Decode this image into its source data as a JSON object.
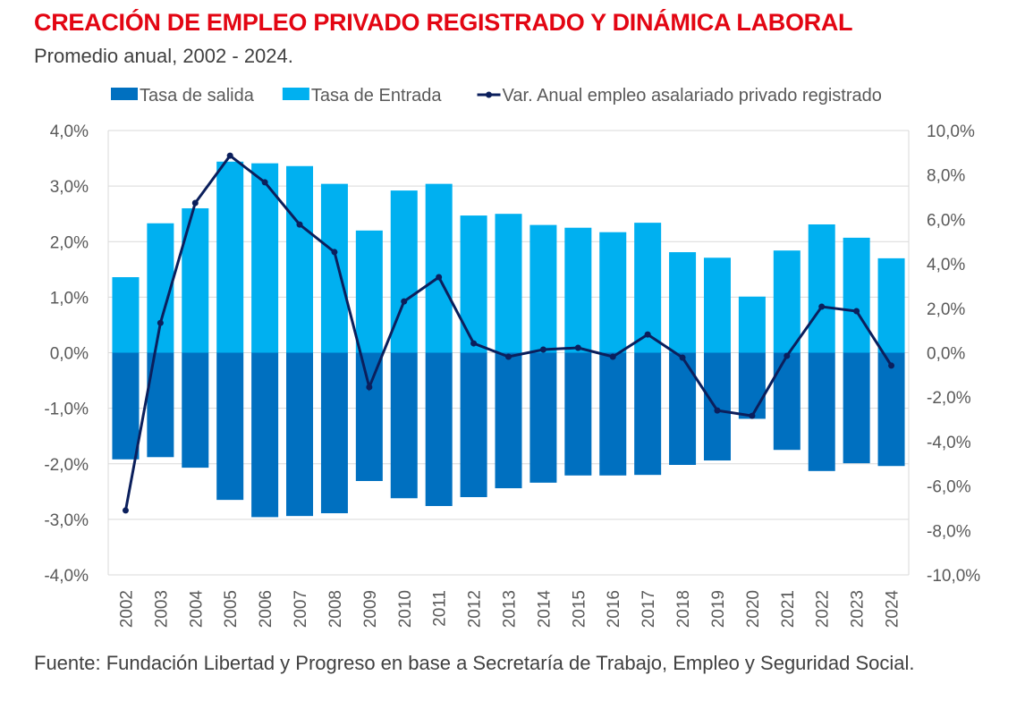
{
  "header": {
    "title": "CREACIÓN DE EMPLEO PRIVADO REGISTRADO Y DINÁMICA LABORAL",
    "subtitle": "Promedio anual, 2002 - 2024."
  },
  "footer": {
    "source": "Fuente: Fundación Libertad y Progreso en base a Secretaría de Trabajo, Empleo y Seguridad Social."
  },
  "chart_data": {
    "type": "bar",
    "categories": [
      "2002",
      "2003",
      "2004",
      "2005",
      "2006",
      "2007",
      "2008",
      "2009",
      "2010",
      "2011",
      "2012",
      "2013",
      "2014",
      "2015",
      "2016",
      "2017",
      "2018",
      "2019",
      "2020",
      "2021",
      "2022",
      "2023",
      "2024"
    ],
    "series": [
      {
        "name": "Tasa de salida",
        "type": "bar",
        "axis": "left",
        "color": "#0070c0",
        "values": [
          -1.92,
          -1.88,
          -2.07,
          -2.65,
          -2.96,
          -2.94,
          -2.89,
          -2.31,
          -2.62,
          -2.76,
          -2.6,
          -2.44,
          -2.34,
          -2.21,
          -2.21,
          -2.2,
          -2.02,
          -1.94,
          -1.19,
          -1.75,
          -2.13,
          -1.99,
          -2.04
        ]
      },
      {
        "name": "Tasa de Entrada",
        "type": "bar",
        "axis": "left",
        "color": "#00b0f0",
        "values": [
          1.36,
          2.33,
          2.6,
          3.44,
          3.41,
          3.36,
          3.04,
          2.2,
          2.92,
          3.04,
          2.47,
          2.5,
          2.3,
          2.25,
          2.17,
          2.34,
          1.81,
          1.71,
          1.01,
          1.84,
          2.31,
          2.07,
          1.7
        ]
      },
      {
        "name": "Var. Anual empleo asalariado privado registrado",
        "type": "line",
        "axis": "right",
        "color": "#0b1f5c",
        "values": [
          -7.1,
          1.34,
          6.74,
          8.87,
          7.67,
          5.77,
          4.53,
          -1.55,
          2.31,
          3.4,
          0.42,
          -0.18,
          0.14,
          0.22,
          -0.18,
          0.82,
          -0.22,
          -2.6,
          -2.84,
          -0.14,
          2.07,
          1.87,
          -0.58
        ]
      }
    ],
    "ylim_left": [
      -4,
      4
    ],
    "yticks_left": [
      "-4,0%",
      "-3,0%",
      "-2,0%",
      "-1,0%",
      "0,0%",
      "1,0%",
      "2,0%",
      "3,0%",
      "4,0%"
    ],
    "ylim_right": [
      -10,
      10
    ],
    "yticks_right": [
      "-10,0%",
      "-8,0%",
      "-6,0%",
      "-4,0%",
      "-2,0%",
      "0,0%",
      "2,0%",
      "4,0%",
      "6,0%",
      "8,0%",
      "10,0%"
    ],
    "grid": true,
    "legend": "top"
  }
}
